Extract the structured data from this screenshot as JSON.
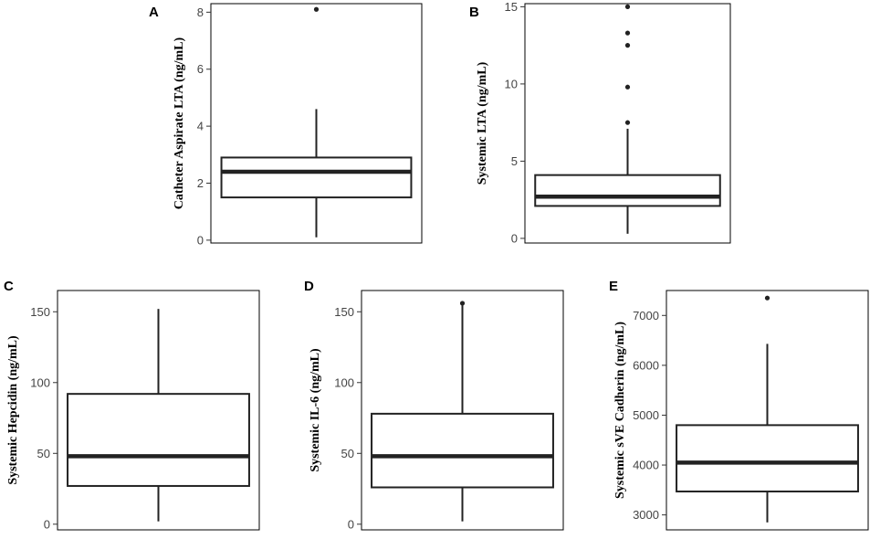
{
  "chart_data": [
    {
      "panel": "A",
      "type": "box",
      "ylabel": "Catheter Aspirate LTA (ng/mL)",
      "ylim": [
        -0.1,
        8.3
      ],
      "yticks": [
        0,
        2,
        4,
        6,
        8
      ],
      "ytick_labels": [
        "0",
        "2",
        "4",
        "6",
        "8"
      ],
      "box": {
        "whisker_low": 0.1,
        "q1": 1.5,
        "median": 2.4,
        "q3": 2.9,
        "whisker_high": 4.6
      },
      "outliers": [
        8.1
      ]
    },
    {
      "panel": "B",
      "type": "box",
      "ylabel": "Systemic LTA (ng/mL)",
      "ylim": [
        -0.3,
        15.2
      ],
      "yticks": [
        0,
        5,
        10,
        15
      ],
      "ytick_labels": [
        "0",
        "5",
        "10",
        "15"
      ],
      "box": {
        "whisker_low": 0.3,
        "q1": 2.1,
        "median": 2.7,
        "q3": 4.1,
        "whisker_high": 7.1
      },
      "outliers": [
        7.5,
        9.8,
        12.5,
        13.3,
        15.0
      ]
    },
    {
      "panel": "C",
      "type": "box",
      "ylabel": "Systemic Hepcidin (ng/mL)",
      "ylim": [
        -4,
        165
      ],
      "yticks": [
        0,
        50,
        100,
        150
      ],
      "ytick_labels": [
        "0",
        "50",
        "100",
        "150"
      ],
      "box": {
        "whisker_low": 2,
        "q1": 27,
        "median": 48,
        "q3": 92,
        "whisker_high": 152
      },
      "outliers": []
    },
    {
      "panel": "D",
      "type": "box",
      "ylabel": "Systemic IL-6 (ng/mL)",
      "ylim": [
        -4,
        165
      ],
      "yticks": [
        0,
        50,
        100,
        150
      ],
      "ytick_labels": [
        "0",
        "50",
        "100",
        "150"
      ],
      "box": {
        "whisker_low": 2,
        "q1": 26,
        "median": 48,
        "q3": 78,
        "whisker_high": 155
      },
      "outliers": [
        156
      ]
    },
    {
      "panel": "E",
      "type": "box",
      "ylabel": "Systemic sVE Cadherin (ng/mL)",
      "ylim": [
        2700,
        7500
      ],
      "yticks": [
        3000,
        4000,
        5000,
        6000,
        7000
      ],
      "ytick_labels": [
        "3000",
        "4000",
        "5000",
        "6000",
        "7000"
      ],
      "box": {
        "whisker_low": 2850,
        "q1": 3470,
        "median": 4050,
        "q3": 4800,
        "whisker_high": 6430
      },
      "outliers": [
        7350
      ]
    }
  ]
}
